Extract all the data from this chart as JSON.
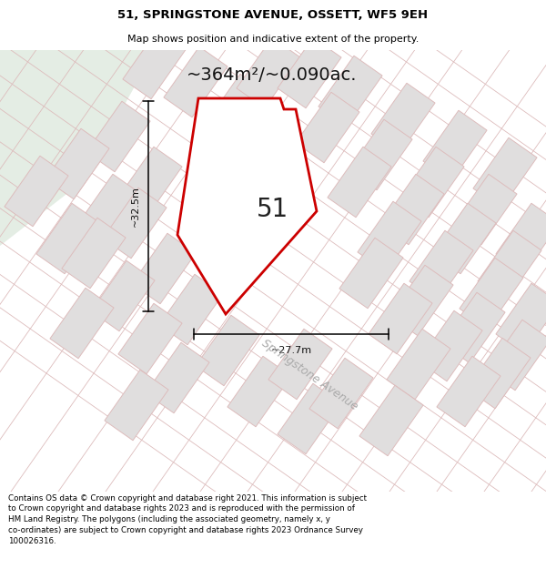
{
  "title_line1": "51, SPRINGSTONE AVENUE, OSSETT, WF5 9EH",
  "title_line2": "Map shows position and indicative extent of the property.",
  "area_text": "~364m²/~0.090ac.",
  "dim_height": "~32.5m",
  "dim_width": "~27.7m",
  "plot_label": "51",
  "street_label": "Springstone Avenue",
  "footer_text": "Contains OS data © Crown copyright and database right 2021. This information is subject to Crown copyright and database rights 2023 and is reproduced with the permission of HM Land Registry. The polygons (including the associated geometry, namely x, y co-ordinates) are subject to Crown copyright and database rights 2023 Ordnance Survey 100026316.",
  "bg_color": "#f2eded",
  "green_color": "#e4ede4",
  "plot_fill": "#ffffff",
  "plot_edge": "#cc0000",
  "grid_line_color": "#ddbcbc",
  "block_fill": "#e0dede",
  "block_edge": "#ddbcbc",
  "header_bg": "#ffffff",
  "footer_bg": "#ffffff"
}
